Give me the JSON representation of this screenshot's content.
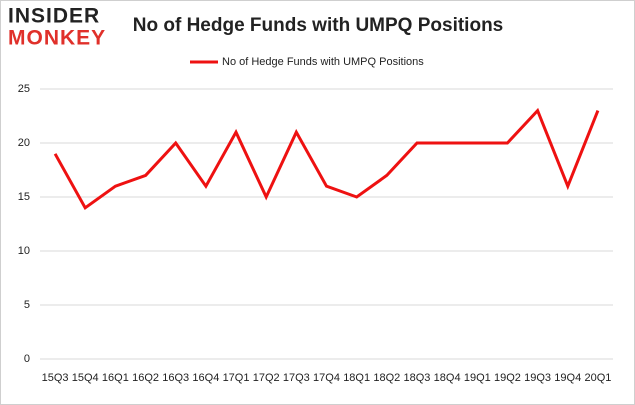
{
  "logo": {
    "line1": "INSIDER",
    "line2": "MONKEY"
  },
  "chart_data": {
    "type": "line",
    "title": "No of Hedge Funds with UMPQ Positions",
    "categories": [
      "15Q3",
      "15Q4",
      "16Q1",
      "16Q2",
      "16Q3",
      "16Q4",
      "17Q1",
      "17Q2",
      "17Q3",
      "17Q4",
      "18Q1",
      "18Q2",
      "18Q3",
      "18Q4",
      "19Q1",
      "19Q2",
      "19Q3",
      "19Q4",
      "20Q1"
    ],
    "series": [
      {
        "name": "No of Hedge Funds with UMPQ Positions",
        "color": "#ee1111",
        "values": [
          19,
          14,
          16,
          17,
          20,
          16,
          21,
          15,
          21,
          16,
          15,
          17,
          20,
          20,
          20,
          20,
          23,
          16,
          23
        ]
      }
    ],
    "ylim": [
      0,
      25
    ],
    "yticks": [
      0,
      5,
      10,
      15,
      20,
      25
    ],
    "grid": true,
    "legend": "top"
  }
}
